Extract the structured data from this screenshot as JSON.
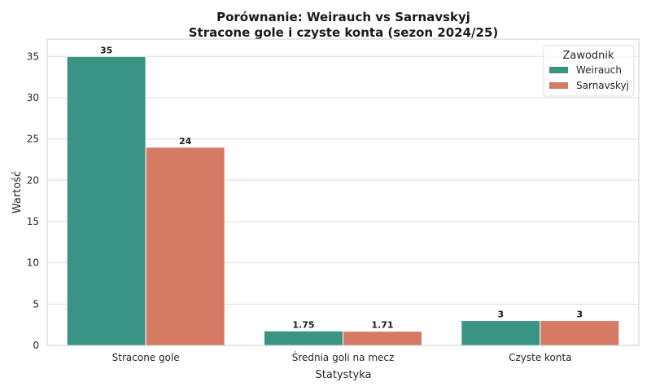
{
  "chart_data": {
    "type": "bar",
    "title": "Porównanie: Weirauch vs Sarnavskyj",
    "subtitle": "Stracone gole i czyste konta (sezon 2024/25)",
    "xlabel": "Statystyka",
    "ylabel": "Wartość",
    "categories": [
      "Stracone gole",
      "Średnia goli na mecz",
      "Czyste konta"
    ],
    "series": [
      {
        "name": "Weirauch",
        "values": [
          35,
          1.75,
          3
        ],
        "labels": [
          "35",
          "1.75",
          "3"
        ],
        "color": "#3a9484"
      },
      {
        "name": "Sarnavskyj",
        "values": [
          24,
          1.71,
          3
        ],
        "labels": [
          "24",
          "1.71",
          "3"
        ],
        "color": "#d57a64"
      }
    ],
    "ylim": [
      0,
      37.1
    ],
    "yticks": [
      "0",
      "5",
      "10",
      "15",
      "20",
      "25",
      "30",
      "35"
    ],
    "grid": true,
    "legend": {
      "title": "Zawodnik",
      "placement": "top-right"
    }
  }
}
